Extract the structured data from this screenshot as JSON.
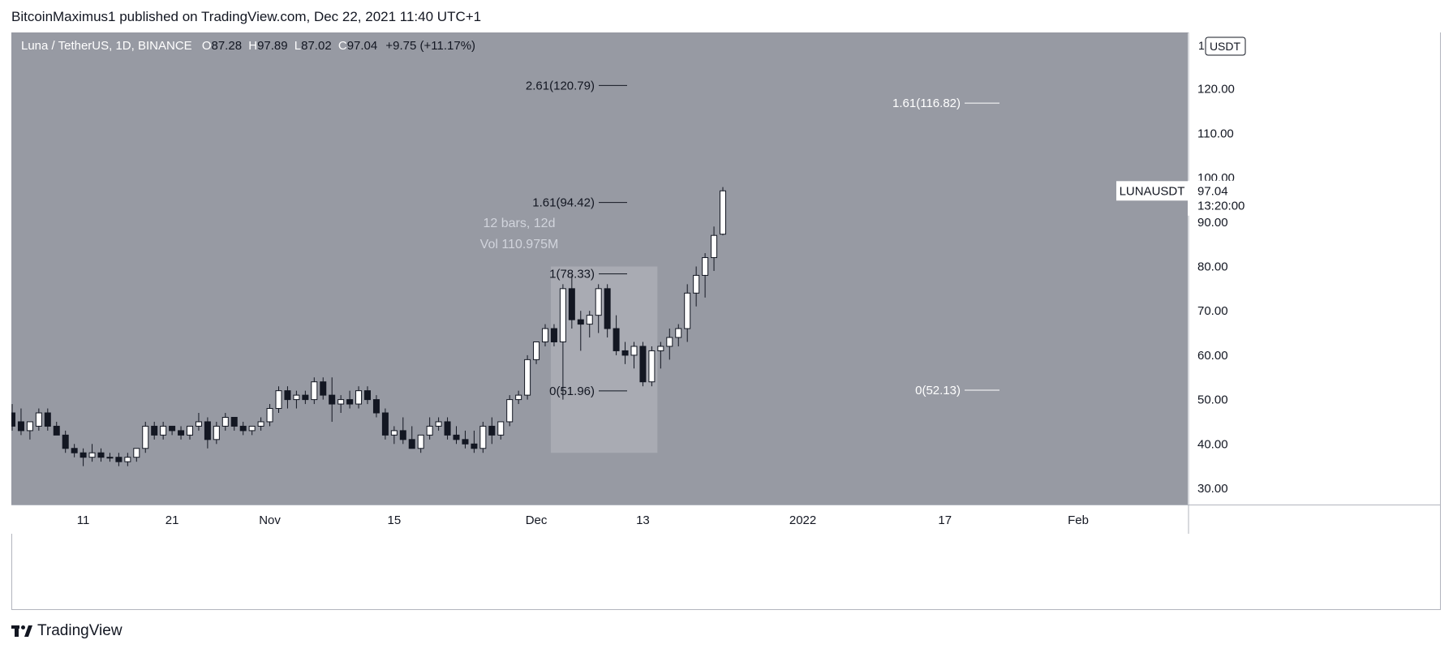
{
  "publisher": "BitcoinMaximus1 published on TradingView.com, Dec 22, 2021 11:40 UTC+1",
  "footer": {
    "brand": "TradingView",
    "icon": "tradingview-logo-icon"
  },
  "colors": {
    "background": "#979aa3",
    "axis_background": "#ffffff",
    "up_candle": "#ffffff",
    "down_candle": "#131722",
    "range_box": "#a9abb3",
    "fib_line_dark": "#131722",
    "fib_line_light": "#ffffff"
  },
  "header": {
    "symbol": "Luna / TetherUS, 1D, BINANCE",
    "o_label": "O",
    "o_value": "87.28",
    "h_label": "H",
    "h_value": "97.89",
    "l_label": "L",
    "l_value": "87.02",
    "c_label": "C",
    "c_value": "97.04",
    "change": "+9.75 (+11.17%)"
  },
  "scale_menu": {
    "number": "1",
    "currency": "USDT"
  },
  "price_label": {
    "symbol": "LUNAUSDT",
    "price": "97.04",
    "countdown": "13:20:00"
  },
  "range_measure": {
    "line1": "12 bars, 12d",
    "line2": "Vol 110.975M",
    "start_bar": 61,
    "end_bar": 73,
    "price_low": 38.0,
    "price_high": 80.0
  },
  "fib_left": [
    {
      "text": "2.61(120.79)",
      "price": 120.79
    },
    {
      "text": "1.61(94.42)",
      "price": 94.42
    },
    {
      "text": "1(78.33)",
      "price": 78.33
    },
    {
      "text": "0(51.96)",
      "price": 51.96
    }
  ],
  "fib_right": [
    {
      "text": "1.61(116.82)",
      "price": 116.82
    },
    {
      "text": "0(52.13)",
      "price": 52.13
    }
  ],
  "chart_data": {
    "type": "candlestick",
    "title": "Luna / TetherUS, 1D, BINANCE",
    "ylim": [
      25,
      132
    ],
    "y_ticks": [
      "30.00",
      "40.00",
      "50.00",
      "60.00",
      "70.00",
      "80.00",
      "90.00",
      "100.00",
      "110.00",
      "120.00"
    ],
    "x_ticks": [
      {
        "label": "11",
        "bar": 8
      },
      {
        "label": "21",
        "bar": 18
      },
      {
        "label": "Nov",
        "bar": 29
      },
      {
        "label": "15",
        "bar": 43
      },
      {
        "label": "Dec",
        "bar": 59
      },
      {
        "label": "13",
        "bar": 71
      },
      {
        "label": "2022",
        "bar": 89
      },
      {
        "label": "17",
        "bar": 105
      },
      {
        "label": "Feb",
        "bar": 120
      }
    ],
    "candles": [
      [
        47,
        49,
        43,
        44
      ],
      [
        45,
        48,
        42,
        43
      ],
      [
        43,
        45,
        41,
        45
      ],
      [
        44,
        48,
        43,
        47
      ],
      [
        47,
        48,
        43,
        44
      ],
      [
        44,
        45,
        42,
        42
      ],
      [
        42,
        43,
        38,
        39
      ],
      [
        39,
        40,
        37,
        38
      ],
      [
        38,
        39,
        35,
        37
      ],
      [
        37,
        40,
        36,
        38
      ],
      [
        38,
        39,
        36,
        37
      ],
      [
        37,
        38,
        36,
        37
      ],
      [
        37,
        38,
        35,
        36
      ],
      [
        36,
        38,
        35,
        37
      ],
      [
        37,
        39,
        36,
        39
      ],
      [
        39,
        45,
        38,
        44
      ],
      [
        44,
        45,
        41,
        42
      ],
      [
        42,
        45,
        41,
        44
      ],
      [
        44,
        44,
        42,
        43
      ],
      [
        43,
        44,
        41,
        42
      ],
      [
        42,
        44,
        41,
        44
      ],
      [
        44,
        47,
        43,
        45
      ],
      [
        45,
        46,
        39,
        41
      ],
      [
        41,
        45,
        40,
        44
      ],
      [
        44,
        47,
        43,
        46
      ],
      [
        46,
        46,
        43,
        44
      ],
      [
        44,
        45,
        42,
        43
      ],
      [
        43,
        44,
        42,
        44
      ],
      [
        44,
        46,
        43,
        45
      ],
      [
        45,
        49,
        44,
        48
      ],
      [
        48,
        53,
        47,
        52
      ],
      [
        52,
        53,
        48,
        50
      ],
      [
        50,
        52,
        48,
        51
      ],
      [
        51,
        52,
        49,
        50
      ],
      [
        50,
        55,
        49,
        54
      ],
      [
        54,
        55,
        50,
        51
      ],
      [
        51,
        55,
        45,
        49
      ],
      [
        49,
        51,
        47,
        50
      ],
      [
        50,
        52,
        48,
        49
      ],
      [
        49,
        53,
        48,
        52
      ],
      [
        52,
        53,
        49,
        50
      ],
      [
        50,
        51,
        46,
        47
      ],
      [
        47,
        48,
        41,
        42
      ],
      [
        42,
        44,
        40,
        43
      ],
      [
        43,
        46,
        40,
        41
      ],
      [
        41,
        44,
        39,
        39
      ],
      [
        39,
        42,
        38,
        42
      ],
      [
        42,
        46,
        41,
        44
      ],
      [
        44,
        46,
        43,
        45
      ],
      [
        45,
        46,
        41,
        42
      ],
      [
        42,
        44,
        40,
        41
      ],
      [
        41,
        43,
        39,
        40
      ],
      [
        40,
        43,
        38,
        39
      ],
      [
        39,
        45,
        38,
        44
      ],
      [
        44,
        46,
        40,
        42
      ],
      [
        42,
        45,
        41,
        45
      ],
      [
        45,
        51,
        44,
        50
      ],
      [
        50,
        52,
        49,
        51
      ],
      [
        51,
        60,
        50,
        59
      ],
      [
        59,
        63,
        58,
        63
      ],
      [
        63,
        67,
        62,
        66
      ],
      [
        66,
        67,
        62,
        63
      ],
      [
        63,
        76,
        50,
        75
      ],
      [
        75,
        78,
        66,
        68
      ],
      [
        68,
        70,
        61,
        67
      ],
      [
        67,
        70,
        64,
        69
      ],
      [
        69,
        76,
        65,
        75
      ],
      [
        75,
        76,
        64,
        66
      ],
      [
        66,
        69,
        60,
        61
      ],
      [
        61,
        63,
        58,
        60
      ],
      [
        60,
        63,
        57,
        62
      ],
      [
        62,
        63,
        53,
        54
      ],
      [
        54,
        62,
        53,
        61
      ],
      [
        61,
        63,
        57,
        62
      ],
      [
        62,
        66,
        59,
        64
      ],
      [
        64,
        67,
        62,
        66
      ],
      [
        66,
        76,
        63,
        74
      ],
      [
        74,
        80,
        71,
        78
      ],
      [
        78,
        83,
        73,
        82
      ],
      [
        82,
        89,
        79,
        87
      ],
      [
        87.28,
        97.89,
        87.02,
        97.04
      ]
    ]
  }
}
